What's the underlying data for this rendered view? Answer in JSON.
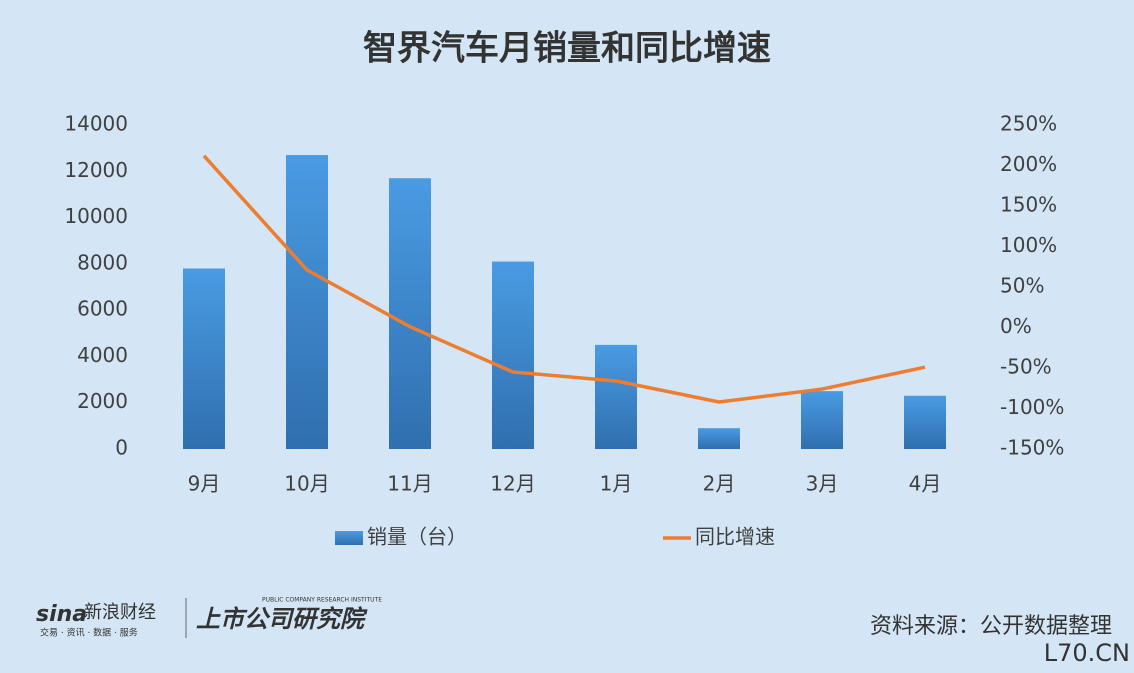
{
  "chart_data": {
    "type": "bar-line",
    "title": "智界汽车月销量和同比增速",
    "categories": [
      "9月",
      "10月",
      "11月",
      "12月",
      "1月",
      "2月",
      "3月",
      "4月"
    ],
    "series": [
      {
        "name": "销量（台）",
        "type": "bar",
        "color": "#3f8ad6",
        "values": [
          7800,
          12700,
          11700,
          8100,
          4500,
          900,
          2500,
          2300
        ]
      },
      {
        "name": "同比增速",
        "type": "line",
        "axis": "y2",
        "color": "#ed7d31",
        "values": [
          212,
          71,
          1,
          -55,
          -66,
          -92,
          -76,
          -49
        ]
      }
    ],
    "ylim": [
      0,
      14000
    ],
    "yticks": [
      0,
      2000,
      4000,
      6000,
      8000,
      10000,
      12000,
      14000
    ],
    "y2lim": [
      -150,
      250
    ],
    "y2ticks": [
      {
        "value": -150,
        "label": "-150%"
      },
      {
        "value": -100,
        "label": "-100%"
      },
      {
        "value": -50,
        "label": "-50%"
      },
      {
        "value": 0,
        "label": "0%"
      },
      {
        "value": 50,
        "label": "50%"
      },
      {
        "value": 100,
        "label": "100%"
      },
      {
        "value": 150,
        "label": "150%"
      },
      {
        "value": 200,
        "label": "200%"
      },
      {
        "value": 250,
        "label": "250%"
      }
    ],
    "legend": "bottom",
    "source": "资料来源：公开数据整理",
    "logos": [
      "sina",
      "新浪财经",
      "交易 · 资讯 · 数据 · 服务",
      "PUBLIC COMPANY RESEARCH INSTITUTE",
      "上市公司研究院"
    ],
    "watermark": "L70.CN"
  }
}
